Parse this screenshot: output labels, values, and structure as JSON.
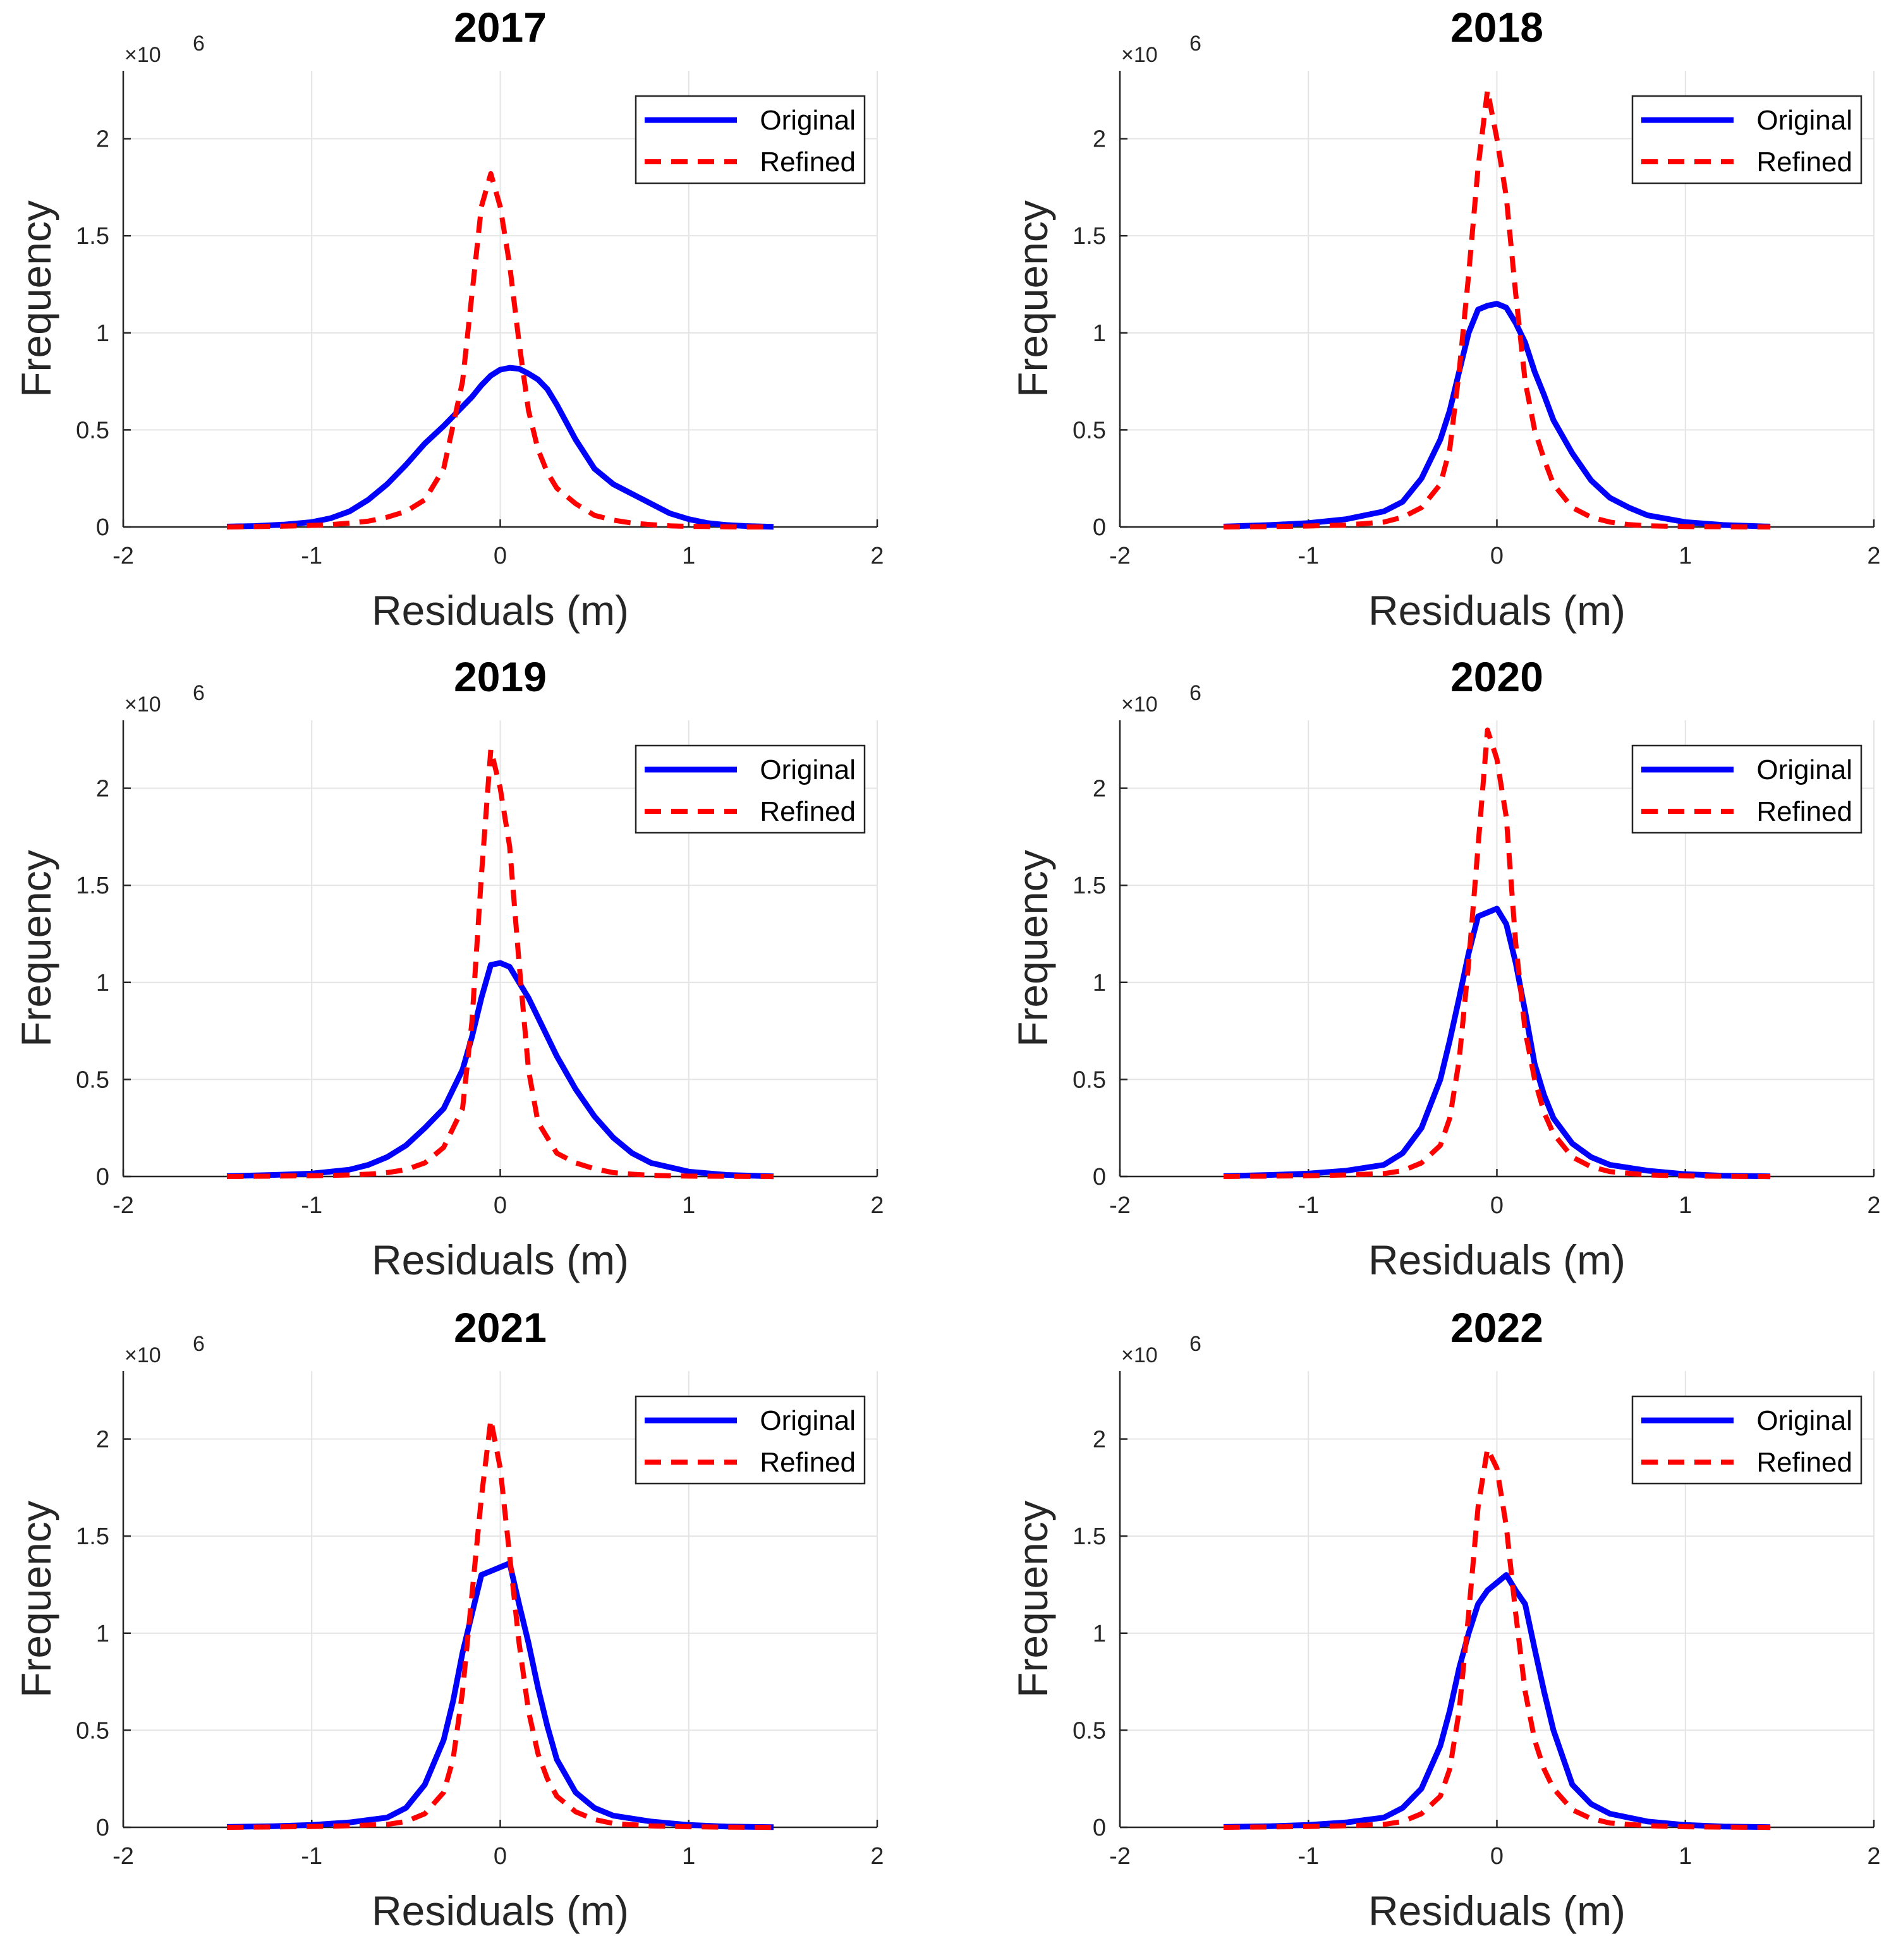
{
  "chart_data": [
    {
      "type": "line",
      "title": "2017",
      "xlabel": "Residuals (m)",
      "ylabel": "Frequency",
      "exponent_label": "×10",
      "exponent_power": "6",
      "xlim": [
        -2,
        2
      ],
      "ylim": [
        0,
        2.35
      ],
      "xticks": [
        "-2",
        "-1",
        "0",
        "1",
        "2"
      ],
      "yticks": [
        "0",
        "0.5",
        "1",
        "1.5",
        "2"
      ],
      "grid": true,
      "legend_position": "top-right",
      "x": [
        -1.45,
        -1.3,
        -1.15,
        -1.0,
        -0.9,
        -0.8,
        -0.7,
        -0.6,
        -0.5,
        -0.4,
        -0.3,
        -0.2,
        -0.15,
        -0.1,
        -0.05,
        0.0,
        0.05,
        0.1,
        0.15,
        0.2,
        0.25,
        0.3,
        0.4,
        0.5,
        0.6,
        0.7,
        0.8,
        0.9,
        1.0,
        1.1,
        1.2,
        1.3,
        1.45
      ],
      "series": [
        {
          "name": "Original",
          "style": "solid",
          "color": "#0000ff",
          "values": [
            0.002,
            0.005,
            0.012,
            0.025,
            0.045,
            0.08,
            0.14,
            0.22,
            0.32,
            0.43,
            0.52,
            0.62,
            0.67,
            0.73,
            0.78,
            0.81,
            0.82,
            0.815,
            0.79,
            0.76,
            0.71,
            0.63,
            0.45,
            0.3,
            0.22,
            0.17,
            0.12,
            0.07,
            0.04,
            0.02,
            0.01,
            0.005,
            0.001
          ]
        },
        {
          "name": "Refined",
          "style": "dashed",
          "color": "#ff0000",
          "values": [
            0.0,
            0.002,
            0.004,
            0.008,
            0.012,
            0.02,
            0.03,
            0.05,
            0.08,
            0.14,
            0.3,
            0.75,
            1.2,
            1.65,
            1.82,
            1.65,
            1.35,
            0.95,
            0.6,
            0.4,
            0.28,
            0.2,
            0.12,
            0.06,
            0.035,
            0.02,
            0.012,
            0.006,
            0.003,
            0.002,
            0.001,
            0.0,
            0.0
          ]
        }
      ]
    },
    {
      "type": "line",
      "title": "2018",
      "xlabel": "Residuals (m)",
      "ylabel": "Frequency",
      "exponent_label": "×10",
      "exponent_power": "6",
      "xlim": [
        -2,
        2
      ],
      "ylim": [
        0,
        2.35
      ],
      "xticks": [
        "-2",
        "-1",
        "0",
        "1",
        "2"
      ],
      "yticks": [
        "0",
        "0.5",
        "1",
        "1.5",
        "2"
      ],
      "grid": true,
      "legend_position": "top-right",
      "x": [
        -1.45,
        -1.2,
        -1.0,
        -0.8,
        -0.6,
        -0.5,
        -0.4,
        -0.3,
        -0.25,
        -0.2,
        -0.15,
        -0.1,
        -0.05,
        0.0,
        0.05,
        0.1,
        0.15,
        0.2,
        0.25,
        0.3,
        0.4,
        0.5,
        0.6,
        0.7,
        0.8,
        1.0,
        1.2,
        1.45
      ],
      "series": [
        {
          "name": "Original",
          "style": "solid",
          "color": "#0000ff",
          "values": [
            0.002,
            0.01,
            0.02,
            0.04,
            0.08,
            0.13,
            0.25,
            0.45,
            0.6,
            0.8,
            1.0,
            1.12,
            1.14,
            1.15,
            1.13,
            1.05,
            0.95,
            0.8,
            0.68,
            0.55,
            0.38,
            0.24,
            0.15,
            0.1,
            0.06,
            0.025,
            0.01,
            0.002
          ]
        },
        {
          "name": "Refined",
          "style": "dashed",
          "color": "#ff0000",
          "values": [
            0.0,
            0.002,
            0.005,
            0.01,
            0.025,
            0.05,
            0.1,
            0.22,
            0.4,
            0.8,
            1.3,
            1.85,
            2.25,
            2.0,
            1.7,
            1.2,
            0.75,
            0.5,
            0.35,
            0.22,
            0.1,
            0.05,
            0.025,
            0.012,
            0.006,
            0.002,
            0.001,
            0.0
          ]
        }
      ]
    },
    {
      "type": "line",
      "title": "2019",
      "xlabel": "Residuals (m)",
      "ylabel": "Frequency",
      "exponent_label": "×10",
      "exponent_power": "6",
      "xlim": [
        -2,
        2
      ],
      "ylim": [
        0,
        2.35
      ],
      "xticks": [
        "-2",
        "-1",
        "0",
        "1",
        "2"
      ],
      "yticks": [
        "0",
        "0.5",
        "1",
        "1.5",
        "2"
      ],
      "grid": true,
      "legend_position": "top-right",
      "x": [
        -1.45,
        -1.2,
        -1.0,
        -0.8,
        -0.7,
        -0.6,
        -0.5,
        -0.4,
        -0.3,
        -0.2,
        -0.15,
        -0.1,
        -0.05,
        0.0,
        0.05,
        0.1,
        0.15,
        0.2,
        0.3,
        0.4,
        0.5,
        0.6,
        0.7,
        0.8,
        1.0,
        1.2,
        1.45
      ],
      "series": [
        {
          "name": "Original",
          "style": "solid",
          "color": "#0000ff",
          "values": [
            0.002,
            0.008,
            0.015,
            0.035,
            0.06,
            0.1,
            0.16,
            0.25,
            0.35,
            0.55,
            0.72,
            0.92,
            1.09,
            1.1,
            1.08,
            1.0,
            0.92,
            0.82,
            0.62,
            0.45,
            0.31,
            0.2,
            0.12,
            0.07,
            0.025,
            0.008,
            0.001
          ]
        },
        {
          "name": "Refined",
          "style": "dashed",
          "color": "#ff0000",
          "values": [
            0.0,
            0.002,
            0.004,
            0.008,
            0.012,
            0.02,
            0.035,
            0.07,
            0.15,
            0.35,
            0.8,
            1.55,
            2.2,
            2.0,
            1.7,
            1.1,
            0.55,
            0.28,
            0.12,
            0.07,
            0.04,
            0.02,
            0.012,
            0.006,
            0.002,
            0.001,
            0.0
          ]
        }
      ]
    },
    {
      "type": "line",
      "title": "2020",
      "xlabel": "Residuals (m)",
      "ylabel": "Frequency",
      "exponent_label": "×10",
      "exponent_power": "6",
      "xlim": [
        -2,
        2
      ],
      "ylim": [
        0,
        2.35
      ],
      "xticks": [
        "-2",
        "-1",
        "0",
        "1",
        "2"
      ],
      "yticks": [
        "0",
        "0.5",
        "1",
        "1.5",
        "2"
      ],
      "grid": true,
      "legend_position": "top-right",
      "x": [
        -1.45,
        -1.2,
        -1.0,
        -0.8,
        -0.6,
        -0.5,
        -0.4,
        -0.3,
        -0.25,
        -0.2,
        -0.15,
        -0.1,
        -0.05,
        0.0,
        0.05,
        0.1,
        0.15,
        0.2,
        0.25,
        0.3,
        0.4,
        0.5,
        0.6,
        0.8,
        1.0,
        1.2,
        1.45
      ],
      "series": [
        {
          "name": "Original",
          "style": "solid",
          "color": "#0000ff",
          "values": [
            0.002,
            0.008,
            0.015,
            0.03,
            0.06,
            0.12,
            0.25,
            0.5,
            0.7,
            0.92,
            1.15,
            1.34,
            1.36,
            1.38,
            1.3,
            1.1,
            0.85,
            0.58,
            0.42,
            0.3,
            0.17,
            0.1,
            0.06,
            0.03,
            0.012,
            0.004,
            0.001
          ]
        },
        {
          "name": "Refined",
          "style": "dashed",
          "color": "#ff0000",
          "values": [
            0.0,
            0.002,
            0.004,
            0.008,
            0.015,
            0.03,
            0.07,
            0.16,
            0.3,
            0.6,
            1.1,
            1.7,
            2.3,
            2.15,
            1.85,
            1.2,
            0.75,
            0.5,
            0.33,
            0.22,
            0.1,
            0.05,
            0.025,
            0.008,
            0.003,
            0.001,
            0.0
          ]
        }
      ]
    },
    {
      "type": "line",
      "title": "2021",
      "xlabel": "Residuals (m)",
      "ylabel": "Frequency",
      "exponent_label": "×10",
      "exponent_power": "6",
      "xlim": [
        -2,
        2
      ],
      "ylim": [
        0,
        2.35
      ],
      "xticks": [
        "-2",
        "-1",
        "0",
        "1",
        "2"
      ],
      "yticks": [
        "0",
        "0.5",
        "1",
        "1.5",
        "2"
      ],
      "grid": true,
      "legend_position": "top-right",
      "x": [
        -1.45,
        -1.2,
        -1.0,
        -0.8,
        -0.6,
        -0.5,
        -0.4,
        -0.3,
        -0.25,
        -0.2,
        -0.15,
        -0.1,
        -0.05,
        0.0,
        0.05,
        0.1,
        0.15,
        0.2,
        0.25,
        0.3,
        0.4,
        0.5,
        0.6,
        0.8,
        1.0,
        1.2,
        1.45
      ],
      "series": [
        {
          "name": "Original",
          "style": "solid",
          "color": "#0000ff",
          "values": [
            0.002,
            0.006,
            0.012,
            0.025,
            0.05,
            0.1,
            0.22,
            0.45,
            0.65,
            0.9,
            1.1,
            1.3,
            1.32,
            1.34,
            1.36,
            1.15,
            0.95,
            0.72,
            0.52,
            0.35,
            0.18,
            0.1,
            0.06,
            0.03,
            0.012,
            0.004,
            0.001
          ]
        },
        {
          "name": "Refined",
          "style": "dashed",
          "color": "#ff0000",
          "values": [
            0.0,
            0.002,
            0.004,
            0.008,
            0.015,
            0.03,
            0.07,
            0.18,
            0.35,
            0.7,
            1.2,
            1.7,
            2.1,
            1.85,
            1.4,
            0.95,
            0.6,
            0.38,
            0.25,
            0.16,
            0.08,
            0.04,
            0.02,
            0.007,
            0.003,
            0.001,
            0.0
          ]
        }
      ]
    },
    {
      "type": "line",
      "title": "2022",
      "xlabel": "Residuals (m)",
      "ylabel": "Frequency",
      "exponent_label": "×10",
      "exponent_power": "6",
      "xlim": [
        -2,
        2
      ],
      "ylim": [
        0,
        2.35
      ],
      "xticks": [
        "-2",
        "-1",
        "0",
        "1",
        "2"
      ],
      "yticks": [
        "0",
        "0.5",
        "1",
        "1.5",
        "2"
      ],
      "grid": true,
      "legend_position": "top-right",
      "x": [
        -1.45,
        -1.2,
        -1.0,
        -0.8,
        -0.6,
        -0.5,
        -0.4,
        -0.3,
        -0.25,
        -0.2,
        -0.15,
        -0.1,
        -0.05,
        0.0,
        0.05,
        0.1,
        0.15,
        0.2,
        0.25,
        0.3,
        0.4,
        0.5,
        0.6,
        0.8,
        1.0,
        1.2,
        1.45
      ],
      "series": [
        {
          "name": "Original",
          "style": "solid",
          "color": "#0000ff",
          "values": [
            0.002,
            0.006,
            0.012,
            0.025,
            0.05,
            0.1,
            0.2,
            0.42,
            0.6,
            0.82,
            1.0,
            1.15,
            1.22,
            1.26,
            1.3,
            1.22,
            1.15,
            0.92,
            0.7,
            0.5,
            0.22,
            0.12,
            0.07,
            0.03,
            0.012,
            0.004,
            0.001
          ]
        },
        {
          "name": "Refined",
          "style": "dashed",
          "color": "#ff0000",
          "values": [
            0.0,
            0.002,
            0.004,
            0.008,
            0.015,
            0.03,
            0.07,
            0.16,
            0.3,
            0.6,
            1.1,
            1.65,
            1.95,
            1.85,
            1.55,
            1.1,
            0.7,
            0.45,
            0.3,
            0.2,
            0.09,
            0.045,
            0.022,
            0.008,
            0.003,
            0.001,
            0.0
          ]
        }
      ]
    }
  ]
}
